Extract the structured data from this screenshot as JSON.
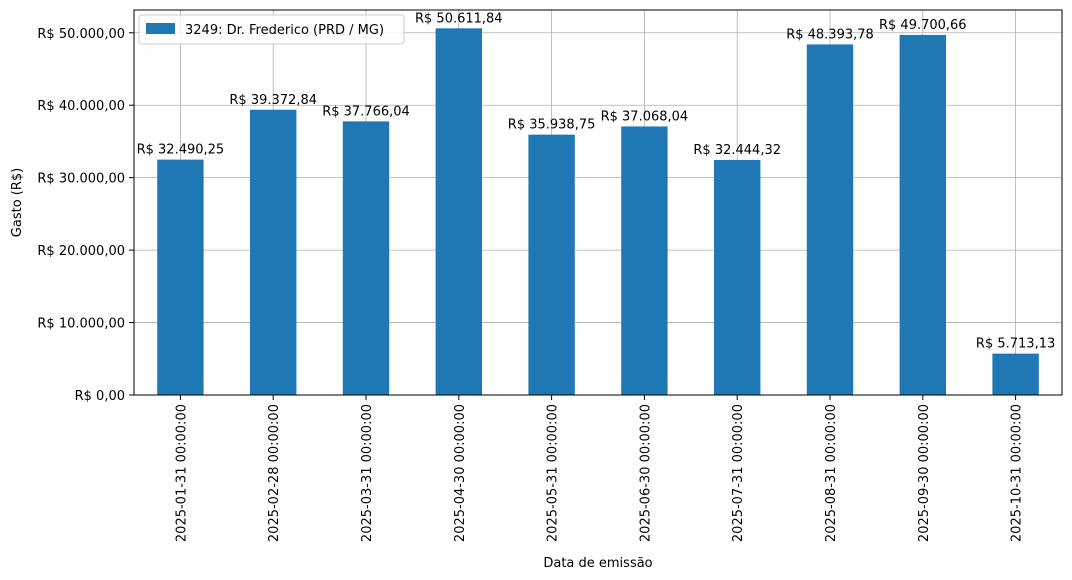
{
  "chart_data": {
    "type": "bar",
    "xlabel": "Data de emissão",
    "ylabel": "Gasto (R$)",
    "categories": [
      "2025-01-31 00:00:00",
      "2025-02-28 00:00:00",
      "2025-03-31 00:00:00",
      "2025-04-30 00:00:00",
      "2025-05-31 00:00:00",
      "2025-06-30 00:00:00",
      "2025-07-31 00:00:00",
      "2025-08-31 00:00:00",
      "2025-09-30 00:00:00",
      "2025-10-31 00:00:00"
    ],
    "series": [
      {
        "name": "3249: Dr. Frederico (PRD / MG)",
        "color": "#1f77b4",
        "values": [
          32490.25,
          39372.84,
          37766.04,
          50611.84,
          35938.75,
          37068.04,
          32444.32,
          48393.78,
          49700.66,
          5713.13
        ],
        "data_labels": [
          "R$ 32.490,25",
          "R$ 39.372,84",
          "R$ 37.766,04",
          "R$ 50.611,84",
          "R$ 35.938,75",
          "R$ 37.068,04",
          "R$ 32.444,32",
          "R$ 48.393,78",
          "R$ 49.700,66",
          "R$ 5.713,13"
        ]
      }
    ],
    "ylim": [
      0,
      53143
    ],
    "yticks": [
      0,
      10000,
      20000,
      30000,
      40000,
      50000
    ],
    "ytick_labels": [
      "R$ 0,00",
      "R$ 10.000,00",
      "R$ 20.000,00",
      "R$ 30.000,00",
      "R$ 40.000,00",
      "R$ 50.000,00"
    ],
    "grid": true,
    "legend_position": "top-left"
  }
}
